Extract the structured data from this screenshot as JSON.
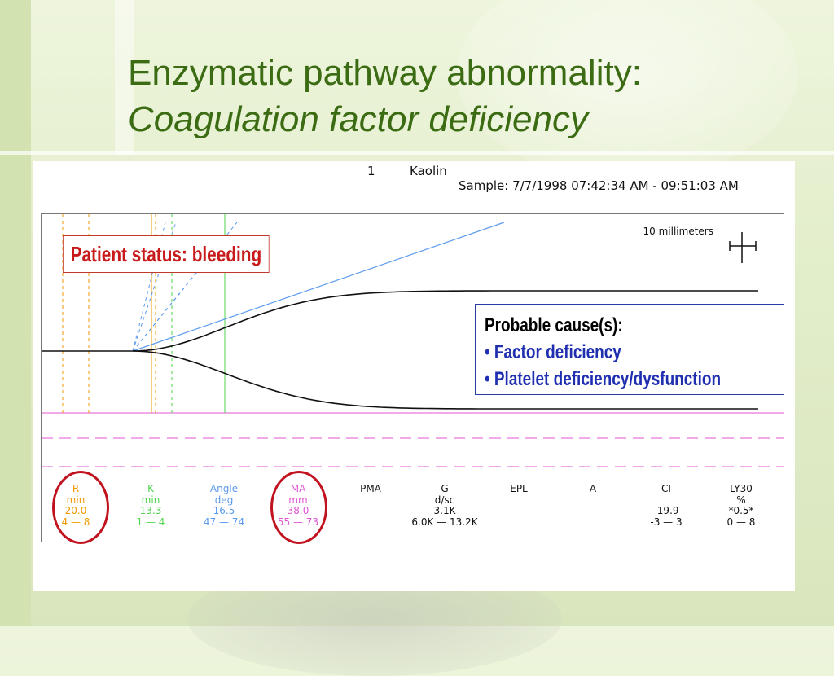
{
  "slide": {
    "title_line1": "Enzymatic pathway abnormality:",
    "title_line2": "Coagulation factor deficiency"
  },
  "tracing": {
    "channel": "1",
    "reagent": "Kaolin",
    "sample": "Sample: 7/7/1998 07:42:34 AM - 09:51:03 AM",
    "scale_label": "10 millimeters",
    "status_callout": "Patient status: bleeding",
    "causes": {
      "title": "Probable cause(s):",
      "items": [
        "• Factor deficiency",
        "• Platelet deficiency/dysfunction"
      ]
    },
    "colors": {
      "R": "#f29a00",
      "K": "#4ed44e",
      "Angle": "#5b9bee",
      "MA": "#e055d4",
      "neutral": "#111111",
      "callout_red": "#c81a1a",
      "callout_blue": "#1f2fb0"
    },
    "parameters": [
      {
        "name": "R",
        "unit": "min",
        "value": "20.0",
        "range": "4 — 8",
        "color": "#f29a00"
      },
      {
        "name": "K",
        "unit": "min",
        "value": "13.3",
        "range": "1 — 4",
        "color": "#4ed44e"
      },
      {
        "name": "Angle",
        "unit": "deg",
        "value": "16.5",
        "range": "47 — 74",
        "color": "#5b9bee"
      },
      {
        "name": "MA",
        "unit": "mm",
        "value": "38.0",
        "range": "55 — 73",
        "color": "#e055d4"
      },
      {
        "name": "PMA",
        "unit": "",
        "value": "",
        "range": "",
        "color": "#111111"
      },
      {
        "name": "G",
        "unit": "d/sc",
        "value": "3.1K",
        "range": "6.0K — 13.2K",
        "color": "#111111"
      },
      {
        "name": "EPL",
        "unit": "",
        "value": "",
        "range": "",
        "color": "#111111"
      },
      {
        "name": "A",
        "unit": "",
        "value": "",
        "range": "",
        "color": "#111111"
      },
      {
        "name": "CI",
        "unit": "",
        "value": "-19.9",
        "range": "-3 — 3",
        "color": "#111111"
      },
      {
        "name": "LY30",
        "unit": "%",
        "value": "*0.5*",
        "range": "0 — 8",
        "color": "#111111"
      }
    ]
  }
}
